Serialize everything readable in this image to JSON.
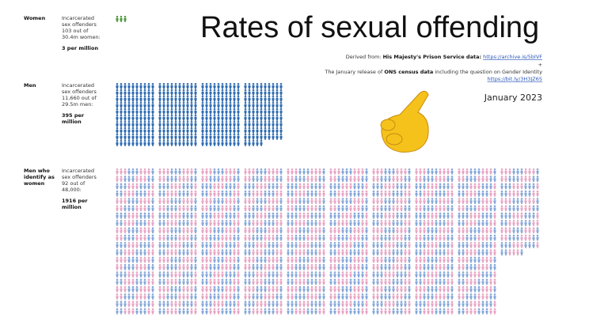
{
  "title": "Rates of sexual offending",
  "source": {
    "prefix": "Derived from: ",
    "org1": "His Majesty's Prison Service data:",
    "link1": "https://archive.is/5blVF",
    "plus": "+",
    "line2a": "The January release of ",
    "org2": "ONS census data",
    "line2b": " including the question on Gender Identity",
    "link2": "https://bit.ly/3H3JZ65"
  },
  "date": "January 2023",
  "rows": [
    {
      "label": [
        "Women"
      ],
      "description": [
        "Incarcerated",
        "sex offenders",
        "103 out of",
        "30.4m women:"
      ],
      "value": 3,
      "value_label": [
        "3 per million"
      ],
      "colors": [
        "#4c9a3c"
      ]
    },
    {
      "label": [
        "Men"
      ],
      "description": [
        "Incarcerated",
        "sex offenders",
        "11,660 out of",
        "29.5m men:"
      ],
      "value": 395,
      "value_label": [
        "395 per",
        "million"
      ],
      "colors": [
        "#2f6cb3"
      ]
    },
    {
      "label": [
        "Men who",
        "identify as",
        "women"
      ],
      "description": [
        "Incarcerated",
        "sex offenders",
        "92 out of",
        "48,000:"
      ],
      "value": 1916,
      "value_label": [
        "1916 per",
        "million"
      ],
      "colors": [
        "#e7a6c4",
        "#86a8da"
      ]
    }
  ]
}
